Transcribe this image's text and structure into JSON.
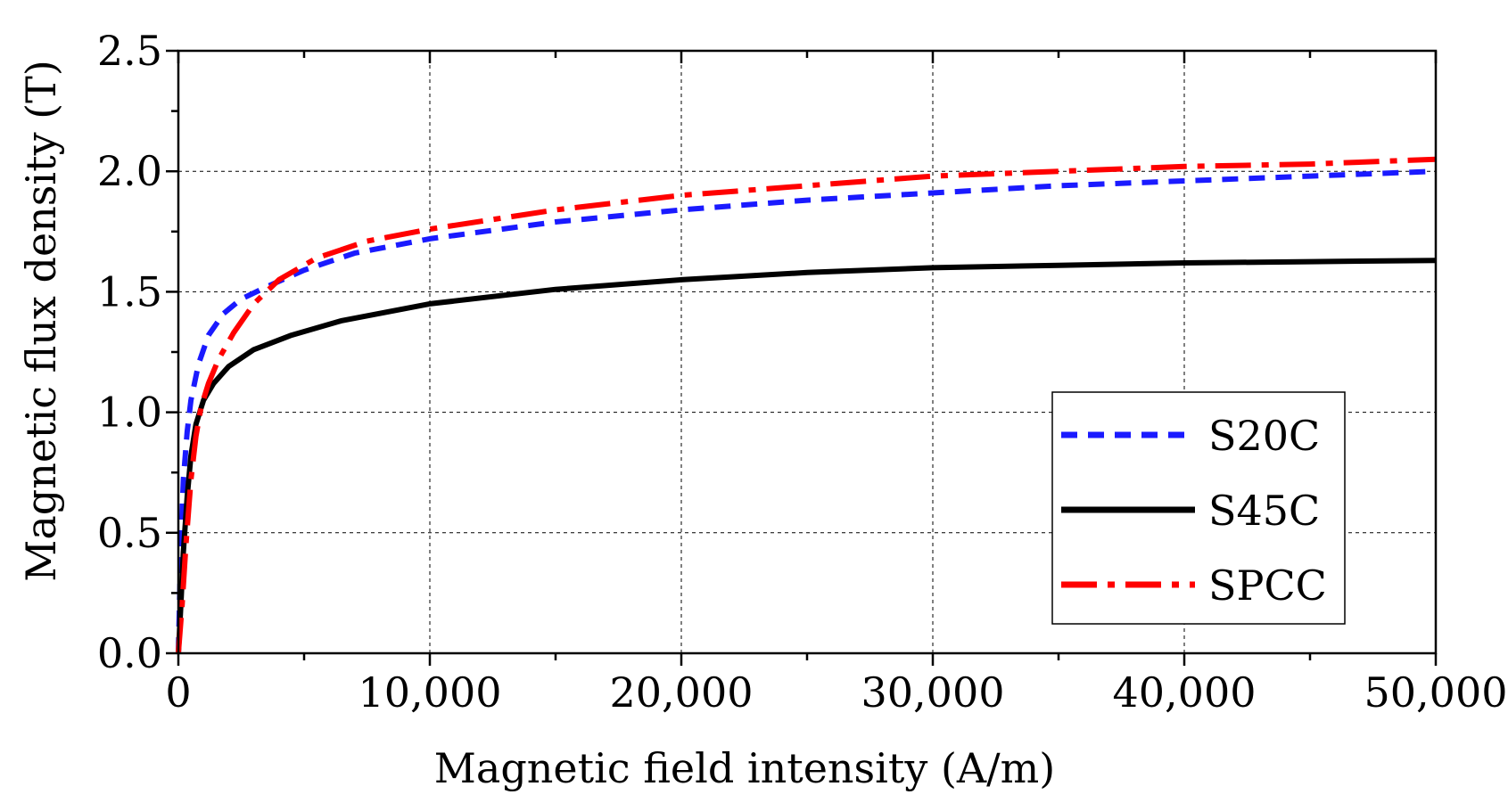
{
  "chart_data": {
    "type": "line",
    "xlabel": "Magnetic field intensity (A/m)",
    "ylabel": "Magnetic flux density (T)",
    "xlim": [
      0,
      50000
    ],
    "ylim": [
      0,
      2.5
    ],
    "x_ticks": [
      0,
      10000,
      20000,
      30000,
      40000,
      50000
    ],
    "x_tick_labels": [
      "0",
      "10,000",
      "20,000",
      "30,000",
      "40,000",
      "50,000"
    ],
    "y_ticks": [
      0,
      0.5,
      1.0,
      1.5,
      2.0,
      2.5
    ],
    "y_tick_labels": [
      "0.0",
      "0.5",
      "1.0",
      "1.5",
      "2.0",
      "2.5"
    ],
    "grid": true,
    "legend_position": "right",
    "series": [
      {
        "name": "S20C",
        "color": "#1a1aff",
        "style": "dashed",
        "x": [
          0,
          100,
          200,
          350,
          500,
          800,
          1200,
          1800,
          2500,
          3500,
          5000,
          7000,
          10000,
          15000,
          20000,
          25000,
          30000,
          35000,
          40000,
          45000,
          50000
        ],
        "y": [
          0,
          0.45,
          0.72,
          0.92,
          1.05,
          1.2,
          1.32,
          1.41,
          1.47,
          1.52,
          1.59,
          1.66,
          1.72,
          1.79,
          1.84,
          1.88,
          1.91,
          1.94,
          1.96,
          1.98,
          2.0
        ]
      },
      {
        "name": "S45C",
        "color": "#000000",
        "style": "solid",
        "x": [
          0,
          100,
          200,
          350,
          500,
          700,
          1000,
          1400,
          2000,
          3000,
          4500,
          6500,
          10000,
          15000,
          20000,
          25000,
          30000,
          35000,
          40000,
          45000,
          50000
        ],
        "y": [
          0,
          0.2,
          0.42,
          0.65,
          0.82,
          0.95,
          1.05,
          1.12,
          1.19,
          1.26,
          1.32,
          1.38,
          1.45,
          1.51,
          1.55,
          1.58,
          1.6,
          1.61,
          1.62,
          1.625,
          1.63
        ]
      },
      {
        "name": "SPCC",
        "color": "#ff0000",
        "style": "dashdot",
        "x": [
          0,
          150,
          300,
          500,
          700,
          900,
          1200,
          1600,
          2200,
          3000,
          4000,
          5500,
          7500,
          10000,
          15000,
          20000,
          25000,
          30000,
          35000,
          40000,
          45000,
          50000
        ],
        "y": [
          0,
          0.2,
          0.45,
          0.72,
          0.9,
          1.02,
          1.12,
          1.22,
          1.33,
          1.45,
          1.55,
          1.64,
          1.71,
          1.76,
          1.84,
          1.9,
          1.94,
          1.98,
          2.0,
          2.02,
          2.03,
          2.05
        ]
      }
    ]
  }
}
